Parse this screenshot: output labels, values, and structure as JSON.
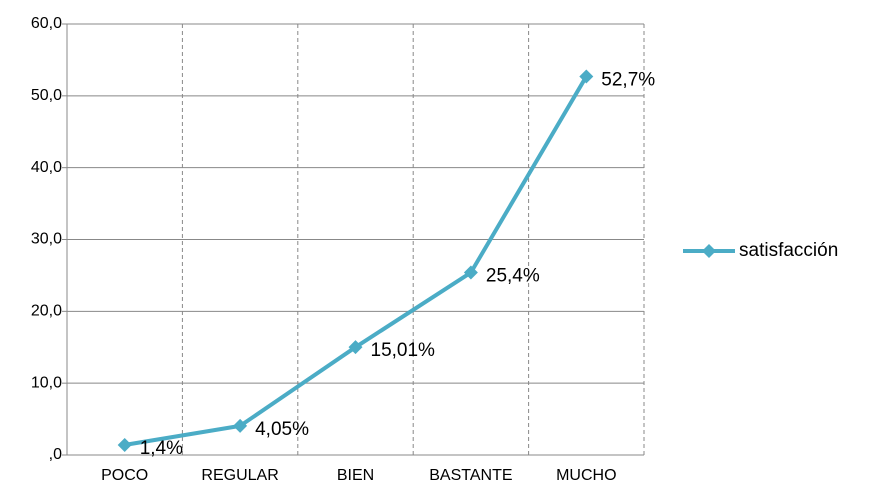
{
  "chart_data": {
    "type": "line",
    "categories": [
      "POCO",
      "REGULAR",
      "BIEN",
      "BASTANTE",
      "MUCHO"
    ],
    "series": [
      {
        "name": "satisfacción",
        "color": "#4bacc6",
        "values": [
          1.4,
          4.05,
          15.01,
          25.4,
          52.7
        ],
        "value_labels": [
          "1,4%",
          "4,05%",
          "15,01%",
          "25,4%",
          "52,7%"
        ]
      }
    ],
    "ylim": [
      0,
      60
    ],
    "yticks": [
      {
        "value": 0,
        "label": ",0"
      },
      {
        "value": 10,
        "label": "10,0"
      },
      {
        "value": 20,
        "label": "20,0"
      },
      {
        "value": 30,
        "label": "30,0"
      },
      {
        "value": 40,
        "label": "40,0"
      },
      {
        "value": 50,
        "label": "50,0"
      },
      {
        "value": 60,
        "label": "60,0"
      }
    ],
    "grid": true,
    "legend": "right"
  }
}
